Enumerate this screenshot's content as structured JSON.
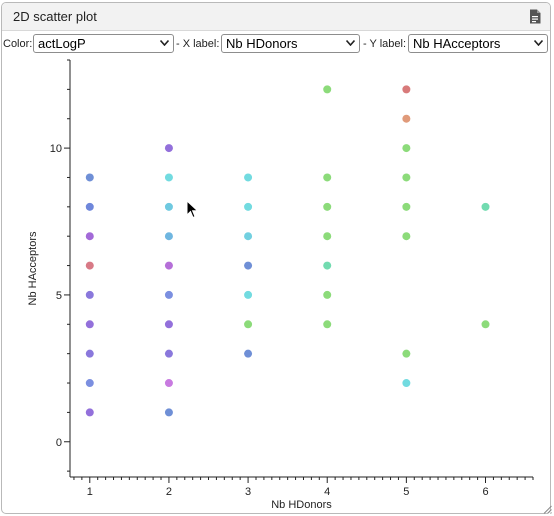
{
  "window": {
    "title": "2D scatter plot",
    "export_icon": "document-export-icon"
  },
  "controls": {
    "color_label": "Color:",
    "color_value": "actLogP",
    "x_label": "- X label:",
    "x_value": "Nb HDonors",
    "y_label": "- Y label:",
    "y_value": "Nb HAcceptors"
  },
  "chart_data": {
    "type": "scatter",
    "xlabel": "Nb HDonors",
    "ylabel": "Nb HAcceptors",
    "xlim": [
      0.75,
      6.6
    ],
    "ylim": [
      -1.2,
      13.0
    ],
    "x_ticks": [
      1,
      2,
      3,
      4,
      5,
      6
    ],
    "y_ticks": [
      0,
      5,
      10
    ],
    "color_by": "actLogP",
    "points": [
      {
        "x": 1,
        "y": 1,
        "color": "#9370db"
      },
      {
        "x": 1,
        "y": 2,
        "color": "#7b8fe0"
      },
      {
        "x": 1,
        "y": 3,
        "color": "#8a78dc"
      },
      {
        "x": 1,
        "y": 4,
        "color": "#9370db"
      },
      {
        "x": 1,
        "y": 5,
        "color": "#8a78dc"
      },
      {
        "x": 1,
        "y": 6,
        "color": "#d87a86"
      },
      {
        "x": 1,
        "y": 7,
        "color": "#a36ad8"
      },
      {
        "x": 1,
        "y": 8,
        "color": "#6f87db"
      },
      {
        "x": 1,
        "y": 9,
        "color": "#6f8fd6"
      },
      {
        "x": 2,
        "y": 1,
        "color": "#6f8fd6"
      },
      {
        "x": 2,
        "y": 2,
        "color": "#c87ae0"
      },
      {
        "x": 2,
        "y": 3,
        "color": "#8a78dc"
      },
      {
        "x": 2,
        "y": 4,
        "color": "#9370db"
      },
      {
        "x": 2,
        "y": 5,
        "color": "#7b8fe0"
      },
      {
        "x": 2,
        "y": 6,
        "color": "#b56fd8"
      },
      {
        "x": 2,
        "y": 7,
        "color": "#6fb6e0"
      },
      {
        "x": 2,
        "y": 8,
        "color": "#6fc9e0"
      },
      {
        "x": 2,
        "y": 9,
        "color": "#72dbe0"
      },
      {
        "x": 2,
        "y": 10,
        "color": "#9370db"
      },
      {
        "x": 3,
        "y": 3,
        "color": "#6f8fd6"
      },
      {
        "x": 3,
        "y": 4,
        "color": "#8cdb7a"
      },
      {
        "x": 3,
        "y": 5,
        "color": "#72dbe0"
      },
      {
        "x": 3,
        "y": 6,
        "color": "#6f8fd6"
      },
      {
        "x": 3,
        "y": 7,
        "color": "#72d0e0"
      },
      {
        "x": 3,
        "y": 8,
        "color": "#72dbe0"
      },
      {
        "x": 3,
        "y": 9,
        "color": "#72dbe0"
      },
      {
        "x": 4,
        "y": 4,
        "color": "#8cdb7a"
      },
      {
        "x": 4,
        "y": 5,
        "color": "#8cdb7a"
      },
      {
        "x": 4,
        "y": 6,
        "color": "#72dbb0"
      },
      {
        "x": 4,
        "y": 7,
        "color": "#8cdb7a"
      },
      {
        "x": 4,
        "y": 8,
        "color": "#8cdb7a"
      },
      {
        "x": 4,
        "y": 9,
        "color": "#8cdb7a"
      },
      {
        "x": 4,
        "y": 12,
        "color": "#8cdb7a"
      },
      {
        "x": 5,
        "y": 2,
        "color": "#72dbe0"
      },
      {
        "x": 5,
        "y": 3,
        "color": "#8cdb7a"
      },
      {
        "x": 5,
        "y": 7,
        "color": "#8cdb7a"
      },
      {
        "x": 5,
        "y": 8,
        "color": "#8cdb7a"
      },
      {
        "x": 5,
        "y": 9,
        "color": "#8cdb7a"
      },
      {
        "x": 5,
        "y": 10,
        "color": "#8cdb7a"
      },
      {
        "x": 5,
        "y": 11,
        "color": "#e09a7a"
      },
      {
        "x": 5,
        "y": 12,
        "color": "#d87a7a"
      },
      {
        "x": 6,
        "y": 4,
        "color": "#8cdb7a"
      },
      {
        "x": 6,
        "y": 8,
        "color": "#72dbb0"
      }
    ]
  }
}
